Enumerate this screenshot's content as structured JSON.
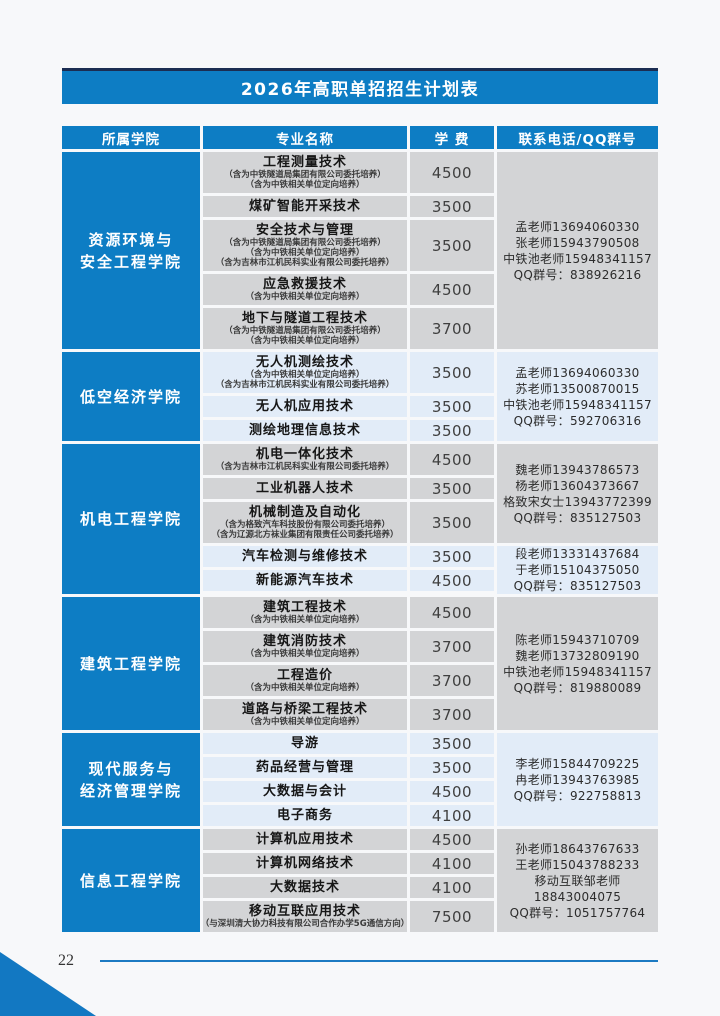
{
  "title": "2026年高职单招招生计划表",
  "page": {
    "number": "22"
  },
  "colors": {
    "primary_blue": "#0d7dc4",
    "dark_navy_rule": "#1b2d52",
    "row_gray": "#d3d4d6",
    "row_light_blue": "#e2ecf8",
    "footer_rule_blue": "#1c7ac2"
  },
  "header": {
    "col_college": "所属学院",
    "col_major": "专业名称",
    "col_fee": "学 费",
    "col_contact": "联系电话/QQ群号"
  },
  "sections": [
    {
      "college": [
        "资源环境与",
        "安全工程学院"
      ],
      "groups": [
        {
          "shade": "gray",
          "rows": [
            {
              "major": "工程测量技术",
              "notes": [
                "（含为中铁隧道局集团有限公司委托培养）",
                "（含为中铁相关单位定向培养）"
              ],
              "fee": "4500"
            },
            {
              "major": "煤矿智能开采技术",
              "notes": [],
              "fee": "3500"
            },
            {
              "major": "安全技术与管理",
              "notes": [
                "（含为中铁隧道局集团有限公司委托培养）",
                "（含为中铁相关单位定向培养）",
                "（含为吉林市江机民科实业有限公司委托培养）"
              ],
              "fee": "3500"
            },
            {
              "major": "应急救援技术",
              "notes": [
                "（含为中铁相关单位定向培养）"
              ],
              "fee": "4500"
            },
            {
              "major": "地下与隧道工程技术",
              "notes": [
                "（含为中铁隧道局集团有限公司委托培养）",
                "（含为中铁相关单位定向培养）"
              ],
              "fee": "3700"
            }
          ],
          "contact": [
            "孟老师13694060330",
            "张老师15943790508",
            "中铁池老师15948341157",
            "QQ群号：838926216"
          ]
        }
      ]
    },
    {
      "college": [
        "低空经济学院"
      ],
      "groups": [
        {
          "shade": "blue",
          "rows": [
            {
              "major": "无人机测绘技术",
              "notes": [
                "（含为中铁相关单位定向培养）",
                "（含为吉林市江机民科实业有限公司委托培养）"
              ],
              "fee": "3500"
            },
            {
              "major": "无人机应用技术",
              "notes": [],
              "fee": "3500"
            },
            {
              "major": "测绘地理信息技术",
              "notes": [],
              "fee": "3500"
            }
          ],
          "contact": [
            "孟老师13694060330",
            "苏老师13500870015",
            "中铁池老师15948341157",
            "QQ群号：592706316"
          ]
        }
      ]
    },
    {
      "college": [
        "机电工程学院"
      ],
      "groups": [
        {
          "shade": "gray",
          "rows": [
            {
              "major": "机电一体化技术",
              "notes": [
                "（含为吉林市江机民科实业有限公司委托培养）"
              ],
              "fee": "4500"
            },
            {
              "major": "工业机器人技术",
              "notes": [],
              "fee": "3500"
            },
            {
              "major": "机械制造及自动化",
              "notes": [
                "（含为格致汽车科技股份有限公司委托培养）",
                "（含为辽源北方袜业集团有限责任公司委托培养）"
              ],
              "fee": "3500"
            }
          ],
          "contact": [
            "魏老师13943786573",
            "杨老师13604373667",
            "格致宋女士13943772399",
            "QQ群号：835127503"
          ]
        },
        {
          "shade": "blue",
          "rows": [
            {
              "major": "汽车检测与维修技术",
              "notes": [],
              "fee": "3500"
            },
            {
              "major": "新能源汽车技术",
              "notes": [],
              "fee": "4500"
            }
          ],
          "contact": [
            "段老师13331437684",
            "于老师15104375050",
            "QQ群号：835127503"
          ]
        }
      ]
    },
    {
      "college": [
        "建筑工程学院"
      ],
      "groups": [
        {
          "shade": "gray",
          "rows": [
            {
              "major": "建筑工程技术",
              "notes": [
                "（含为中铁相关单位定向培养）"
              ],
              "fee": "4500"
            },
            {
              "major": "建筑消防技术",
              "notes": [
                "（含为中铁相关单位定向培养）"
              ],
              "fee": "3700"
            },
            {
              "major": "工程造价",
              "notes": [
                "（含为中铁相关单位定向培养）"
              ],
              "fee": "3700"
            },
            {
              "major": "道路与桥梁工程技术",
              "notes": [
                "（含为中铁相关单位定向培养）"
              ],
              "fee": "3700"
            }
          ],
          "contact": [
            "陈老师15943710709",
            "魏老师13732809190",
            "中铁池老师15948341157",
            "QQ群号：819880089"
          ]
        }
      ]
    },
    {
      "college": [
        "现代服务与",
        "经济管理学院"
      ],
      "groups": [
        {
          "shade": "blue",
          "rows": [
            {
              "major": "导游",
              "notes": [],
              "fee": "3500"
            },
            {
              "major": "药品经营与管理",
              "notes": [],
              "fee": "3500"
            },
            {
              "major": "大数据与会计",
              "notes": [],
              "fee": "4500"
            },
            {
              "major": "电子商务",
              "notes": [],
              "fee": "4100"
            }
          ],
          "contact": [
            "李老师15844709225",
            "冉老师13943763985",
            "QQ群号：922758813"
          ]
        }
      ]
    },
    {
      "college": [
        "信息工程学院"
      ],
      "groups": [
        {
          "shade": "gray",
          "rows": [
            {
              "major": "计算机应用技术",
              "notes": [],
              "fee": "4500"
            },
            {
              "major": "计算机网络技术",
              "notes": [],
              "fee": "4100"
            },
            {
              "major": "大数据技术",
              "notes": [],
              "fee": "4100"
            },
            {
              "major": "移动互联应用技术",
              "notes": [
                "（与深圳清大协力科技有限公司合作办学5G通信方向）"
              ],
              "fee": "7500"
            }
          ],
          "contact": [
            "孙老师18643767633",
            "王老师15043788233",
            "移动互联邹老师",
            "18843004075",
            "QQ群号：1051757764"
          ]
        }
      ]
    }
  ]
}
